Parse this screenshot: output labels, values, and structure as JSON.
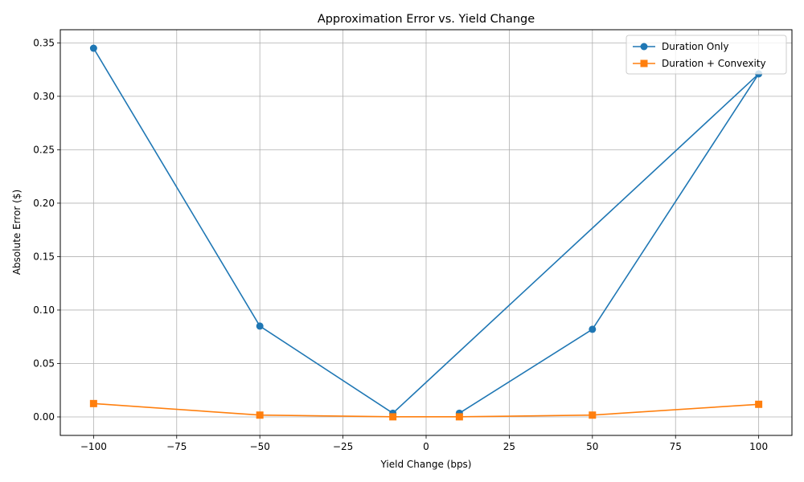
{
  "chart_data": {
    "type": "line",
    "title": "Approximation Error vs. Yield Change",
    "xlabel": "Yield Change (bps)",
    "ylabel": "Absolute Error ($)",
    "xlim": [
      -110,
      110
    ],
    "ylim": [
      -0.0173,
      0.3623
    ],
    "xticks": [
      -100,
      -75,
      -50,
      -25,
      0,
      25,
      50,
      75,
      100
    ],
    "xtick_labels": [
      "−100",
      "−75",
      "−50",
      "−25",
      "0",
      "25",
      "50",
      "75",
      "100"
    ],
    "yticks": [
      0.0,
      0.05,
      0.1,
      0.15,
      0.2,
      0.25,
      0.3,
      0.35
    ],
    "ytick_labels": [
      "0.00",
      "0.05",
      "0.10",
      "0.15",
      "0.20",
      "0.25",
      "0.30",
      "0.35"
    ],
    "grid": true,
    "legend_position": "top-right",
    "series": [
      {
        "name": "Duration Only",
        "color": "#1f77b4",
        "marker": "circle",
        "x": [
          -100,
          -50,
          -10,
          100,
          50,
          10
        ],
        "y": [
          0.345,
          0.085,
          0.0035,
          0.321,
          0.082,
          0.0035
        ]
      },
      {
        "name": "Duration + Convexity",
        "color": "#ff7f0e",
        "marker": "square",
        "x": [
          -100,
          -50,
          -10,
          10,
          50,
          100
        ],
        "y": [
          0.0125,
          0.0017,
          0.0001,
          0.0001,
          0.0017,
          0.0118
        ]
      }
    ]
  }
}
